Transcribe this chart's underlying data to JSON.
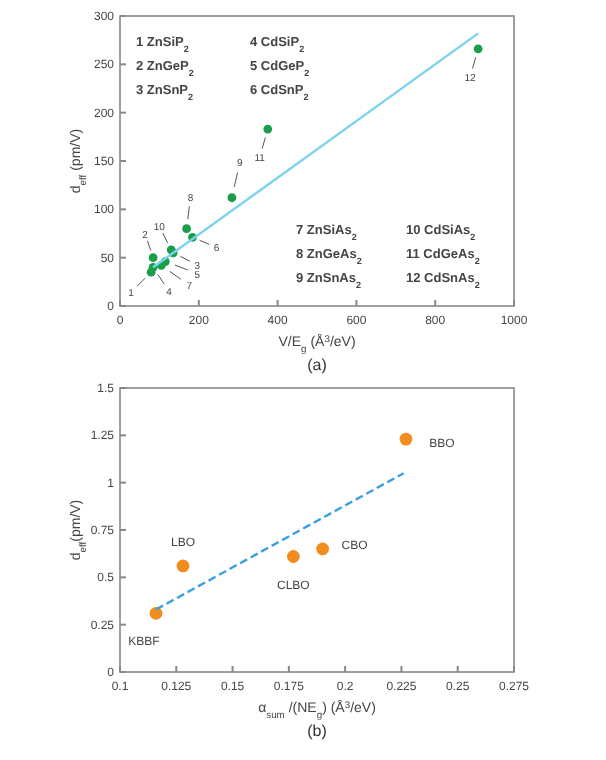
{
  "chart_data": [
    {
      "type": "scatter",
      "title": "(a)",
      "xlabel": "V/E$_{g}$ (Å$^{3}$/eV)",
      "ylabel": "d$_{eff}$ (pm/V)",
      "xlim": [
        0,
        1000
      ],
      "ylim": [
        0,
        300
      ],
      "xticks": [
        0,
        200,
        400,
        600,
        800,
        1000
      ],
      "yticks": [
        0,
        50,
        100,
        150,
        200,
        250,
        300
      ],
      "grid": false,
      "series": [
        {
          "type": "scatter",
          "marker": "circle",
          "color": "#1a9e4a",
          "x": [
            79,
            84,
            135,
            84,
            115,
            184,
            105,
            169,
            284,
            130,
            375,
            909
          ],
          "values": [
            35,
            50,
            55,
            40,
            46,
            71,
            42,
            80,
            112,
            58,
            183,
            266
          ]
        },
        {
          "type": "line",
          "marker": "none",
          "color": "#7dd3ee",
          "x": [
            84,
            909
          ],
          "values": [
            40,
            282
          ],
          "line_style": "solid"
        }
      ],
      "annotations": [
        "1 ZnSiP$_{2}$",
        "2 ZnGeP$_{2}$",
        "3 ZnSnP$_{2}$",
        "4 CdSiP$_{2}$",
        "5 CdGeP$_{2}$",
        "6 CdSnP$_{2}$",
        "7 ZnSiAs$_{2}$",
        "8 ZnGeAs$_{2}$",
        "9 ZnSnAs$_{2}$",
        "10 CdSiAs$_{2}$",
        "11 CdGeAs$_{2}$",
        "12 CdSnAs$_{2}$",
        {
          "text": "1",
          "x": 79,
          "y": 35
        },
        {
          "text": "2",
          "x": 84,
          "y": 50
        },
        {
          "text": "3",
          "x": 135,
          "y": 55
        },
        {
          "text": "4",
          "x": 84,
          "y": 40
        },
        {
          "text": "5",
          "x": 115,
          "y": 46
        },
        {
          "text": "6",
          "x": 184,
          "y": 71
        },
        {
          "text": "7",
          "x": 105,
          "y": 42
        },
        {
          "text": "8",
          "x": 169,
          "y": 80
        },
        {
          "text": "9",
          "x": 284,
          "y": 112
        },
        {
          "text": "10",
          "x": 130,
          "y": 58
        },
        {
          "text": "11",
          "x": 375,
          "y": 183
        },
        {
          "text": "12",
          "x": 909,
          "y": 266
        }
      ]
    },
    {
      "type": "scatter",
      "title": "(b)",
      "xlabel": "α$_{sum}$ /(NE$_{g}$) (Å$^{3}$/eV)",
      "ylabel": "d$_{eff}$(pm/V)",
      "xlim": [
        0.1,
        0.275
      ],
      "ylim": [
        0,
        1.5
      ],
      "xticks": [
        0.1,
        0.125,
        0.15,
        0.175,
        0.2,
        0.225,
        0.25,
        0.275
      ],
      "yticks": [
        0,
        0.25,
        0.5,
        0.75,
        1,
        1.25,
        1.5
      ],
      "grid": false,
      "series": [
        {
          "type": "scatter",
          "marker": "circle",
          "color": "#f28c1e",
          "x": [
            0.116,
            0.128,
            0.177,
            0.19,
            0.227
          ],
          "values": [
            0.31,
            0.56,
            0.61,
            0.65,
            1.23
          ]
        },
        {
          "type": "line",
          "marker": "none",
          "color": "#3aa0e0",
          "x": [
            0.116,
            0.226
          ],
          "values": [
            0.33,
            1.05
          ],
          "line_style": "dashed"
        }
      ],
      "annotations": [
        {
          "text": "KBBF",
          "x": 0.116,
          "y": 0.31
        },
        {
          "text": "LBO",
          "x": 0.128,
          "y": 0.56
        },
        {
          "text": "CLBO",
          "x": 0.177,
          "y": 0.61
        },
        {
          "text": "CBO",
          "x": 0.19,
          "y": 0.65
        },
        {
          "text": "BBO",
          "x": 0.227,
          "y": 1.23
        }
      ]
    }
  ]
}
